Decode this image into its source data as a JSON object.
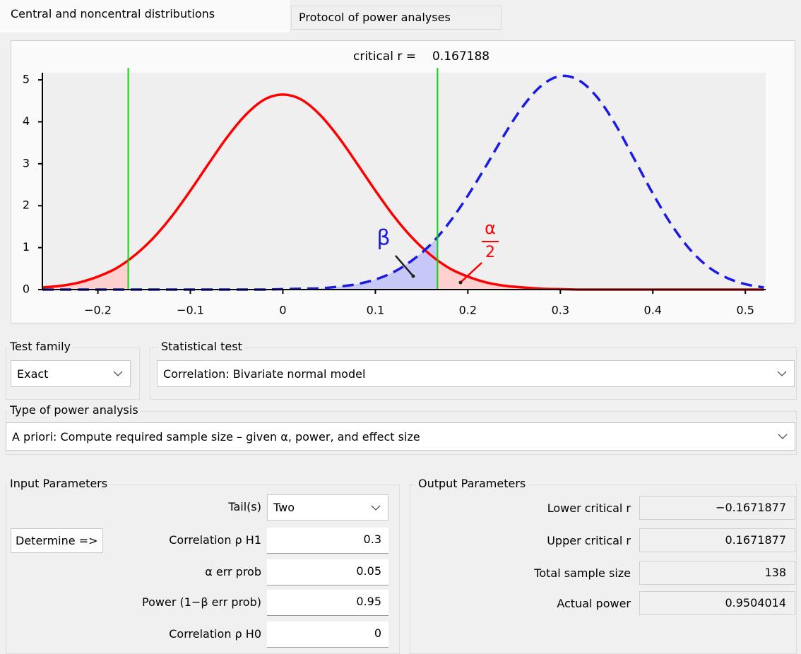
{
  "tabs": [
    "Central and noncentral distributions",
    "Protocol of power analyses"
  ],
  "chart_data": {
    "type": "line",
    "title": "critical r =",
    "critical_r": 0.167188,
    "lower_critical_r": -0.167188,
    "x": [
      -0.26,
      -0.24,
      -0.22,
      -0.2,
      -0.18,
      -0.16,
      -0.14,
      -0.12,
      -0.1,
      -0.08,
      -0.06,
      -0.04,
      -0.02,
      0,
      0.02,
      0.04,
      0.06,
      0.08,
      0.1,
      0.12,
      0.14,
      0.16,
      0.18,
      0.2,
      0.22,
      0.24,
      0.26,
      0.28,
      0.3,
      0.32,
      0.34,
      0.36,
      0.38,
      0.4,
      0.42,
      0.44,
      0.46,
      0.48,
      0.5,
      0.52
    ],
    "series": [
      {
        "color": "#ff0000",
        "line_style": "solid",
        "fill": "#ffd0d0",
        "values": [
          0.05,
          0.09,
          0.17,
          0.31,
          0.51,
          0.82,
          1.23,
          1.75,
          2.36,
          3.01,
          3.64,
          4.17,
          4.53,
          4.65,
          4.53,
          4.17,
          3.64,
          3.01,
          2.36,
          1.75,
          1.23,
          0.82,
          0.51,
          0.31,
          0.17,
          0.09,
          0.05,
          0.02,
          0.01,
          0,
          0,
          0,
          0,
          0,
          0,
          0,
          0,
          0,
          0,
          0
        ]
      },
      {
        "color": "#1a1ae6",
        "line_style": "dashed",
        "fill": "#c8c8f8",
        "values": [
          0,
          0,
          0,
          0,
          0,
          0,
          0,
          0,
          0,
          0,
          0,
          0,
          0,
          0.01,
          0.02,
          0.03,
          0.07,
          0.13,
          0.24,
          0.42,
          0.7,
          1.08,
          1.6,
          2.24,
          2.96,
          3.71,
          4.38,
          4.87,
          5.09,
          4.99,
          4.58,
          3.92,
          3.11,
          2.29,
          1.55,
          0.96,
          0.54,
          0.28,
          0.13,
          0.05
        ]
      }
    ],
    "critical_line_color": "#00dd00",
    "annotations": [
      "β",
      "α",
      "2"
    ],
    "xlim": [
      -0.26,
      0.522
    ],
    "ylim": [
      0,
      5.17
    ],
    "xticks": [
      {
        "value": -0.2,
        "label": "−0.2"
      },
      {
        "value": -0.1,
        "label": "−0.1"
      },
      0,
      0.1,
      0.2,
      0.3,
      0.4,
      0.5
    ],
    "yticks": [
      0,
      1,
      2,
      3,
      4,
      5
    ]
  },
  "test_family": {
    "label": "Test family",
    "value": "Exact"
  },
  "statistical_test": {
    "label": "Statistical test",
    "value": "Correlation: Bivariate normal model"
  },
  "power_analysis": {
    "label": "Type of power analysis",
    "value": "A priori: Compute required sample size – given α, power, and effect size"
  },
  "input_parameters": {
    "title": "Input Parameters",
    "button": "Determine =>",
    "rows": [
      [
        "Tail(s)",
        "Two"
      ],
      [
        "Correlation ρ H1",
        0.3
      ],
      [
        "α err prob",
        0.05
      ],
      [
        "Power (1−β err prob)",
        0.95
      ],
      [
        "Correlation ρ H0",
        0
      ]
    ]
  },
  "output_parameters": {
    "title": "Output Parameters",
    "rows": [
      [
        "Lower critical r",
        "−0.1671877"
      ],
      [
        "Upper critical r",
        0.1671877
      ],
      [
        "Total sample size",
        138
      ],
      [
        "Actual power",
        0.9504014
      ]
    ]
  }
}
